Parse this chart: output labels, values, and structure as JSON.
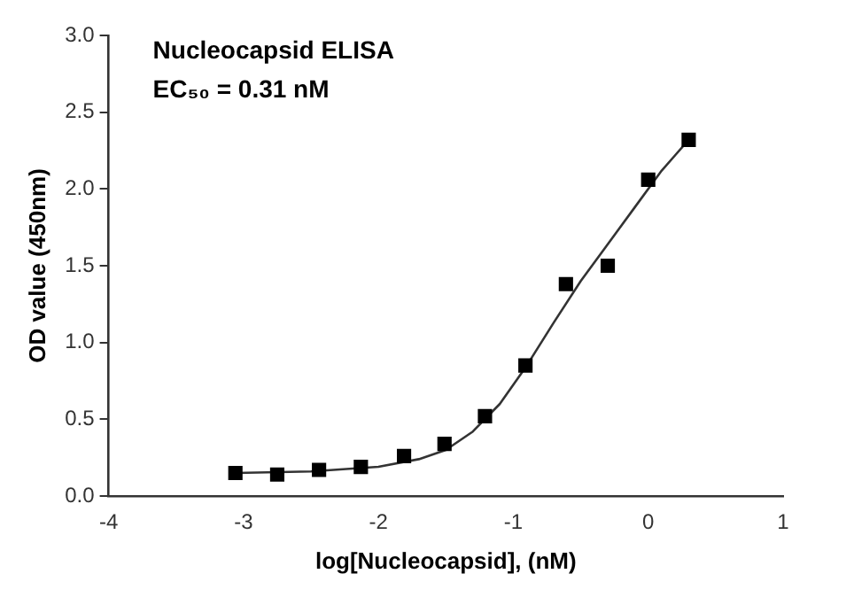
{
  "chart_data": {
    "type": "scatter",
    "xlabel": "log[Nucleocapsid], (nM)",
    "ylabel": "OD value (450nm)",
    "annotations": [
      "Nucleocapsid ELISA",
      "EC₅₀ = 0.31 nM"
    ],
    "xlim": [
      -4,
      1
    ],
    "xticks": [
      -4,
      -3,
      -2,
      -1,
      0,
      1
    ],
    "ylim": [
      0,
      3
    ],
    "yticks": [
      {
        "value": 0,
        "label": "0.0"
      },
      {
        "value": 0.5,
        "label": "0.5"
      },
      {
        "value": 1,
        "label": "1.0"
      },
      {
        "value": 1.5,
        "label": "1.5"
      },
      {
        "value": 2,
        "label": "2.0"
      },
      {
        "value": 2.5,
        "label": "2.5"
      },
      {
        "value": 3,
        "label": "3.0"
      }
    ],
    "grid": false,
    "legend": false,
    "series": [
      {
        "color": "#000000",
        "marker": "square",
        "x": [
          -3.06,
          -2.75,
          -2.44,
          -2.13,
          -1.81,
          -1.51,
          -1.21,
          -0.91,
          -0.61,
          -0.3,
          0.0,
          0.3
        ],
        "values": [
          0.15,
          0.14,
          0.17,
          0.19,
          0.26,
          0.34,
          0.52,
          0.85,
          1.38,
          1.5,
          2.06,
          2.32
        ]
      },
      {
        "type": "line",
        "color": "#333333",
        "marker": "none",
        "line_style": "solid",
        "x": [
          -3.06,
          -2.5,
          -2.0,
          -1.7,
          -1.5,
          -1.3,
          -1.1,
          -0.9,
          -0.7,
          -0.5,
          -0.3,
          -0.1,
          0.1,
          0.3
        ],
        "values": [
          0.15,
          0.16,
          0.19,
          0.24,
          0.3,
          0.42,
          0.6,
          0.85,
          1.13,
          1.4,
          1.64,
          1.88,
          2.12,
          2.32
        ]
      }
    ]
  }
}
